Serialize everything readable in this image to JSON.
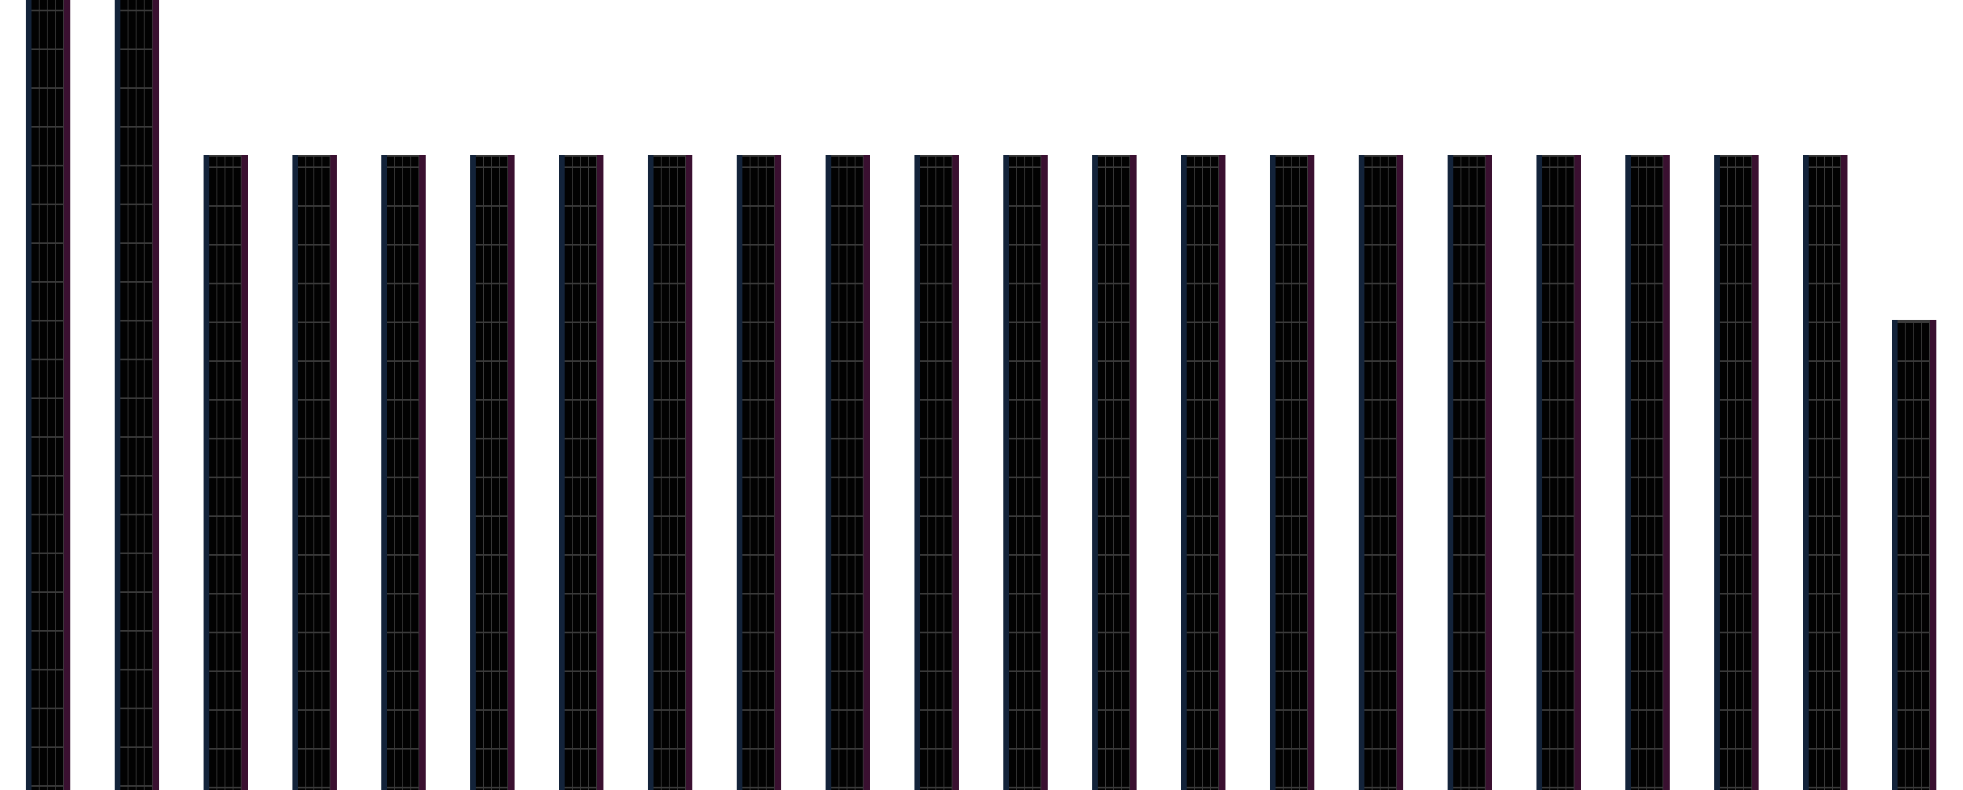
{
  "colors": {
    "background": "#ffffff",
    "column_fill": "#020202",
    "grid_line": "#3a3a3a",
    "left_edge": "#13233a",
    "right_edge": "#3a1030"
  }
}
